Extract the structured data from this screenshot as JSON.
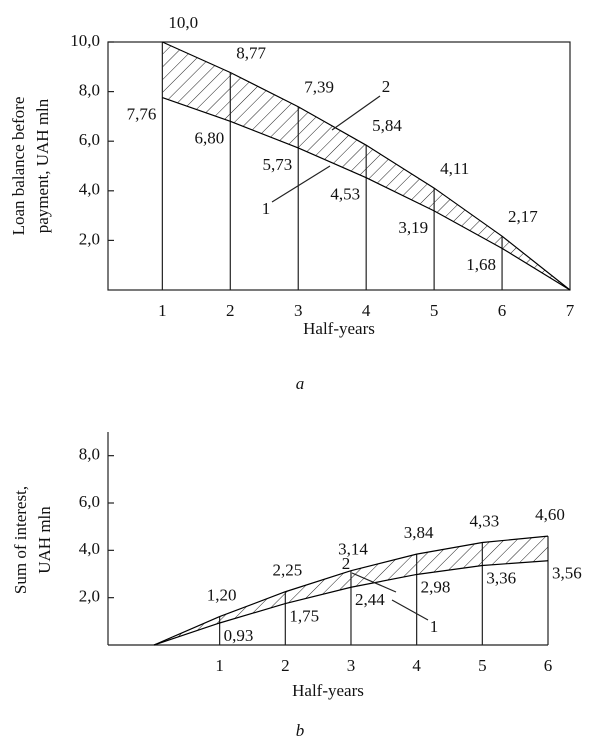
{
  "chart_data": [
    {
      "type": "line",
      "caption": "a",
      "xlabel": "Half-years",
      "ylabel": [
        "Loan balance before",
        "payment, UAH mln"
      ],
      "x": [
        1,
        2,
        3,
        4,
        5,
        6,
        7
      ],
      "series": [
        {
          "name": "1",
          "color": "#000000",
          "values": [
            7.76,
            6.8,
            5.73,
            4.53,
            3.19,
            1.68,
            0
          ],
          "value_labels": [
            "7,76",
            "6,80",
            "5,73",
            "4,53",
            "3,19",
            "1,68",
            null
          ]
        },
        {
          "name": "2",
          "color": "#000000",
          "values": [
            10.0,
            8.77,
            7.39,
            5.84,
            4.11,
            2.17,
            0
          ],
          "value_labels": [
            "10,0",
            "8,77",
            "7,39",
            "5,84",
            "4,11",
            "2,17",
            null
          ]
        }
      ],
      "xlim": [
        0.2,
        7
      ],
      "xticks": [
        1,
        2,
        3,
        4,
        5,
        6,
        7
      ],
      "ylim": [
        0,
        10
      ],
      "yticks": [
        {
          "value": 2,
          "label": "2,0"
        },
        {
          "value": 4,
          "label": "4,0"
        },
        {
          "value": 6,
          "label": "6,0"
        },
        {
          "value": 8,
          "label": "8,0"
        },
        {
          "value": 10,
          "label": "10,0"
        }
      ],
      "hatch": true
    },
    {
      "type": "line",
      "caption": "b",
      "xlabel": "Half-years",
      "ylabel": [
        "Sum of interest,",
        "UAH mln"
      ],
      "x": [
        0,
        1,
        2,
        3,
        4,
        5,
        6
      ],
      "series": [
        {
          "name": "1",
          "color": "#000000",
          "values": [
            0,
            0.93,
            1.75,
            2.44,
            2.98,
            3.36,
            3.56
          ],
          "value_labels": [
            null,
            "0,93",
            "1,75",
            "2,44",
            "2,98",
            "3,36",
            "3,56"
          ]
        },
        {
          "name": "2",
          "color": "#000000",
          "values": [
            0,
            1.2,
            2.25,
            3.14,
            3.84,
            4.33,
            4.6
          ],
          "value_labels": [
            null,
            "1,20",
            "2,25",
            "3,14",
            "3,84",
            "4,33",
            "4,60"
          ]
        }
      ],
      "xlim": [
        -0.7,
        6
      ],
      "xticks": [
        1,
        2,
        3,
        4,
        5,
        6
      ],
      "ylim": [
        0,
        9
      ],
      "yticks": [
        {
          "value": 2,
          "label": "2,0"
        },
        {
          "value": 4,
          "label": "4,0"
        },
        {
          "value": 6,
          "label": "6,0"
        },
        {
          "value": 8,
          "label": "8,0"
        }
      ],
      "hatch": true
    }
  ]
}
